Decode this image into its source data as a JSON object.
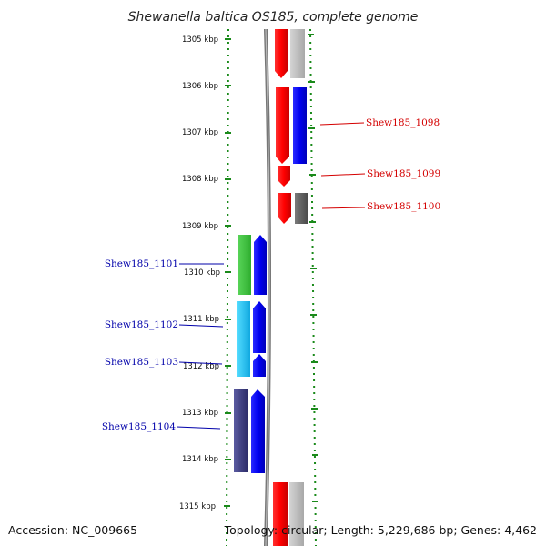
{
  "title": "Shewanella baltica OS185, complete genome",
  "accession": "Accession: NC_009665",
  "topology": "Topology: circular; Length: 5,229,686 bp; Genes: 4,462",
  "scale_labels": [
    "1305 kbp",
    "1306 kbp",
    "1307 kbp",
    "1308 kbp",
    "1309 kbp",
    "1310 kbp",
    "1311 kbp",
    "1312 kbp",
    "1313 kbp",
    "1314 kbp",
    "1315 kbp"
  ],
  "forward_genes": [
    "Shew185_1098",
    "Shew185_1099",
    "Shew185_1100"
  ],
  "reverse_genes": [
    "Shew185_1101",
    "Shew185_1102",
    "Shew185_1103",
    "Shew185_1104"
  ],
  "colors": {
    "forward_label": "#d40000",
    "reverse_label": "#0000aa",
    "ruler": "#1a8a1a",
    "backbone": "#777777"
  }
}
